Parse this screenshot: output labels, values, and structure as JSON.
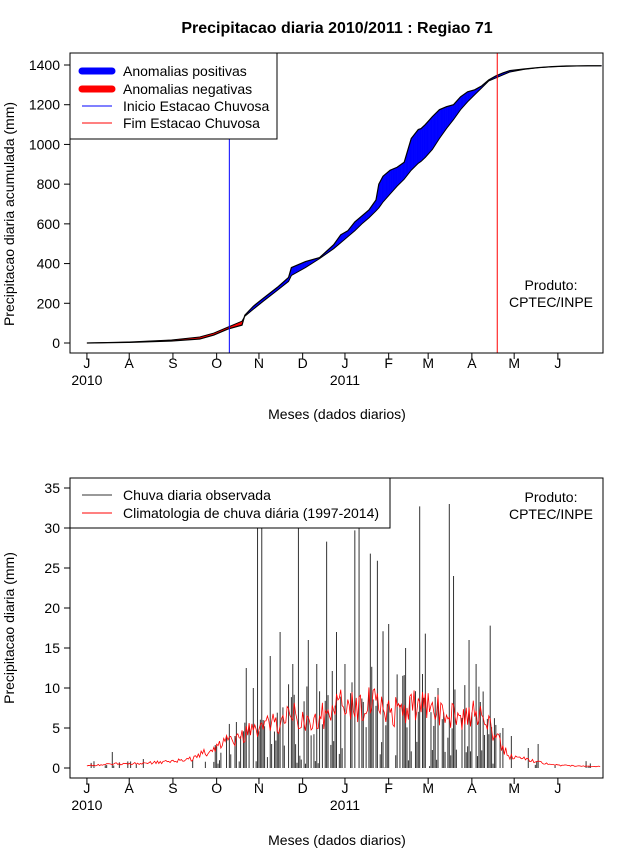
{
  "title": "Precipitacao diaria 2010/2011 : Regiao 71",
  "months": [
    "J",
    "A",
    "S",
    "O",
    "N",
    "D",
    "J",
    "F",
    "M",
    "A",
    "M",
    "J"
  ],
  "year_labels": [
    {
      "month_index": 0,
      "text": "2010"
    },
    {
      "month_index": 6,
      "text": "2011"
    }
  ],
  "chart_data": [
    {
      "type": "area",
      "ylabel": "Precipitacao diaria acumulada (mm)",
      "xlabel": "Meses (dados diarios)",
      "ylim": [
        0,
        1400
      ],
      "yticks": [
        0,
        200,
        400,
        600,
        800,
        1000,
        1200,
        1400
      ],
      "xlim_days": [
        -12,
        366
      ],
      "legend": [
        {
          "label": "Anomalias positivas",
          "color": "#0000ff",
          "kind": "thick"
        },
        {
          "label": "Anomalias negativas",
          "color": "#ff0000",
          "kind": "thick"
        },
        {
          "label": "Inicio Estacao Chuvosa",
          "color": "#0000ff",
          "kind": "thin"
        },
        {
          "label": "Fim Estacao Chuvosa",
          "color": "#ff0000",
          "kind": "thin"
        }
      ],
      "rainy_season_start_day": 101,
      "rainy_season_end_day": 291,
      "observed_cumulative": {
        "days": [
          0,
          30,
          60,
          80,
          90,
          100,
          110,
          112,
          118,
          125,
          135,
          143,
          145,
          155,
          165,
          175,
          180,
          185,
          190,
          195,
          200,
          205,
          207,
          210,
          215,
          220,
          225,
          230,
          235,
          237,
          240,
          245,
          250,
          255,
          260,
          265,
          270,
          275,
          280,
          285,
          290,
          295,
          300,
          310,
          320,
          330,
          340,
          355,
          365
        ],
        "values": [
          0,
          3,
          10,
          20,
          40,
          70,
          90,
          140,
          185,
          225,
          280,
          330,
          380,
          410,
          430,
          495,
          545,
          565,
          610,
          640,
          670,
          720,
          800,
          840,
          870,
          885,
          910,
          1030,
          1075,
          1080,
          1100,
          1140,
          1175,
          1190,
          1200,
          1240,
          1265,
          1275,
          1295,
          1325,
          1345,
          1360,
          1372,
          1380,
          1387,
          1392,
          1395,
          1396,
          1396
        ]
      },
      "climatology_cumulative": {
        "days": [
          0,
          30,
          60,
          80,
          90,
          100,
          110,
          112,
          118,
          125,
          135,
          143,
          145,
          155,
          165,
          175,
          180,
          185,
          190,
          195,
          200,
          205,
          207,
          210,
          215,
          220,
          225,
          230,
          235,
          237,
          240,
          245,
          250,
          255,
          260,
          265,
          270,
          275,
          280,
          285,
          290,
          295,
          300,
          310,
          320,
          330,
          340,
          355,
          365
        ],
        "values": [
          0,
          5,
          15,
          30,
          50,
          80,
          110,
          135,
          170,
          210,
          265,
          310,
          340,
          380,
          425,
          475,
          505,
          535,
          565,
          600,
          630,
          665,
          680,
          710,
          750,
          790,
          825,
          870,
          905,
          915,
          935,
          975,
          1030,
          1080,
          1125,
          1175,
          1215,
          1250,
          1285,
          1320,
          1335,
          1350,
          1365,
          1378,
          1386,
          1391,
          1394,
          1396,
          1396
        ]
      },
      "annotation": {
        "line1": "Produto:",
        "line2": "CPTEC/INPE"
      }
    },
    {
      "type": "bar",
      "ylabel": "Precipitacao diaria (mm)",
      "xlabel": "Meses (dados diarios)",
      "ylim": [
        0,
        35
      ],
      "yticks": [
        0,
        5,
        10,
        15,
        20,
        25,
        30,
        35
      ],
      "xlim_days": [
        -12,
        366
      ],
      "legend": [
        {
          "label": "Chuva diaria observada",
          "color": "#333333"
        },
        {
          "label": "Climatologia de chuva diária (1997-2014)",
          "color": "#ff0000"
        }
      ],
      "observed_daily_peaks": [
        {
          "day": 18,
          "value": 2
        },
        {
          "day": 105,
          "value": 4
        },
        {
          "day": 113,
          "value": 12.5
        },
        {
          "day": 118,
          "value": 10
        },
        {
          "day": 121,
          "value": 35
        },
        {
          "day": 124,
          "value": 35
        },
        {
          "day": 130,
          "value": 14
        },
        {
          "day": 137,
          "value": 17
        },
        {
          "day": 146,
          "value": 13
        },
        {
          "day": 150,
          "value": 30.2
        },
        {
          "day": 157,
          "value": 16
        },
        {
          "day": 163,
          "value": 13
        },
        {
          "day": 170,
          "value": 28.3
        },
        {
          "day": 177,
          "value": 17
        },
        {
          "day": 183,
          "value": 13
        },
        {
          "day": 190,
          "value": 29.7
        },
        {
          "day": 193,
          "value": 35
        },
        {
          "day": 201,
          "value": 26.8
        },
        {
          "day": 206,
          "value": 25.9
        },
        {
          "day": 210,
          "value": 17.1
        },
        {
          "day": 214,
          "value": 18
        },
        {
          "day": 226,
          "value": 15
        },
        {
          "day": 236,
          "value": 32.7
        },
        {
          "day": 240,
          "value": 16.8
        },
        {
          "day": 249,
          "value": 10
        },
        {
          "day": 257,
          "value": 33
        },
        {
          "day": 260,
          "value": 24
        },
        {
          "day": 271,
          "value": 16
        },
        {
          "day": 276,
          "value": 13
        },
        {
          "day": 286,
          "value": 17.8
        },
        {
          "day": 295,
          "value": 5
        },
        {
          "day": 301,
          "value": 4
        },
        {
          "day": 313,
          "value": 2.5
        },
        {
          "day": 320,
          "value": 3
        }
      ],
      "climatology_daily_anchors": {
        "days": [
          0,
          20,
          40,
          60,
          75,
          85,
          95,
          105,
          115,
          125,
          135,
          145,
          155,
          165,
          175,
          185,
          195,
          205,
          215,
          225,
          235,
          245,
          255,
          265,
          275,
          285,
          295,
          300,
          310,
          320,
          330,
          340,
          355,
          365
        ],
        "values": [
          0.3,
          0.5,
          0.6,
          0.8,
          1.2,
          2.0,
          3.0,
          3.5,
          4.5,
          5.0,
          5.5,
          6.5,
          6.0,
          6.2,
          7.5,
          8.0,
          7.8,
          8.0,
          7.0,
          7.2,
          7.8,
          7.5,
          7.0,
          6.5,
          6.8,
          5.5,
          2.5,
          1.5,
          1.2,
          0.8,
          0.4,
          0.3,
          0.2,
          0.2
        ]
      },
      "annotation": {
        "line1": "Produto:",
        "line2": "CPTEC/INPE"
      }
    }
  ]
}
